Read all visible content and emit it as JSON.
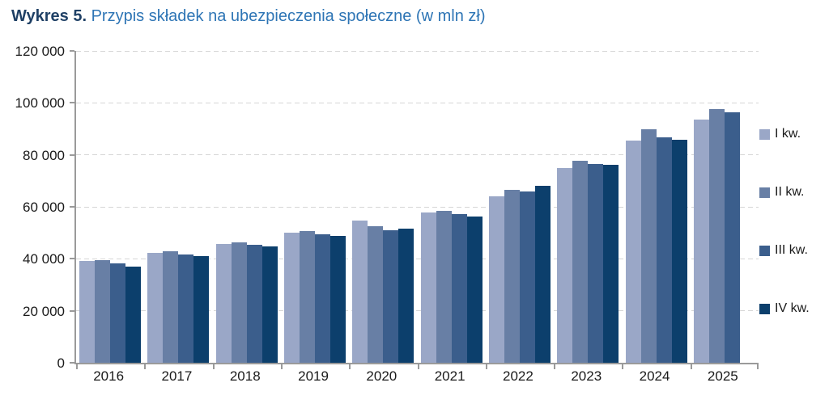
{
  "title": {
    "prefix": "Wykres 5.",
    "rest": "Przypis składek na ubezpieczenia społeczne (w mln zł)"
  },
  "colors": {
    "title_prefix": "#1f4065",
    "title_rest": "#2e75b5",
    "axis": "#9a9a9a",
    "gridline": "#d6d6d6",
    "axis_text": "#1a1a1a",
    "series_1": "#9aa7c7",
    "series_2": "#687fa5",
    "series_3": "#3b5e8c",
    "series_4": "#0c3f6c"
  },
  "chart_data": {
    "type": "bar",
    "title": "Wykres 5. Przypis składek na ubezpieczenia społeczne (w mln zł)",
    "xlabel": "",
    "ylabel": "",
    "ylim": [
      0,
      120000
    ],
    "ytick_step": 20000,
    "ytick_labels": [
      "0",
      "20 000",
      "40 000",
      "60 000",
      "80 000",
      "100 000",
      "120 000"
    ],
    "grid": "horizontal-dashed",
    "legend_position": "right",
    "categories": [
      "2016",
      "2017",
      "2018",
      "2019",
      "2020",
      "2021",
      "2022",
      "2023",
      "2024",
      "2025"
    ],
    "series": [
      {
        "name": "I kw.",
        "color": "#9aa7c7",
        "values": [
          39100,
          42200,
          45800,
          50100,
          54600,
          57900,
          64200,
          74800,
          85500,
          93700
        ]
      },
      {
        "name": "II kw.",
        "color": "#687fa5",
        "values": [
          39500,
          42800,
          46200,
          50600,
          52400,
          58400,
          66500,
          77600,
          89900,
          97600
        ]
      },
      {
        "name": "III kw.",
        "color": "#3b5e8c",
        "values": [
          38100,
          41700,
          45300,
          49300,
          51000,
          57200,
          65900,
          76400,
          86700,
          96300
        ]
      },
      {
        "name": "IV kw.",
        "color": "#0c3f6c",
        "values": [
          37100,
          40900,
          44700,
          48700,
          51600,
          56400,
          68100,
          76200,
          85900,
          null
        ]
      }
    ]
  }
}
